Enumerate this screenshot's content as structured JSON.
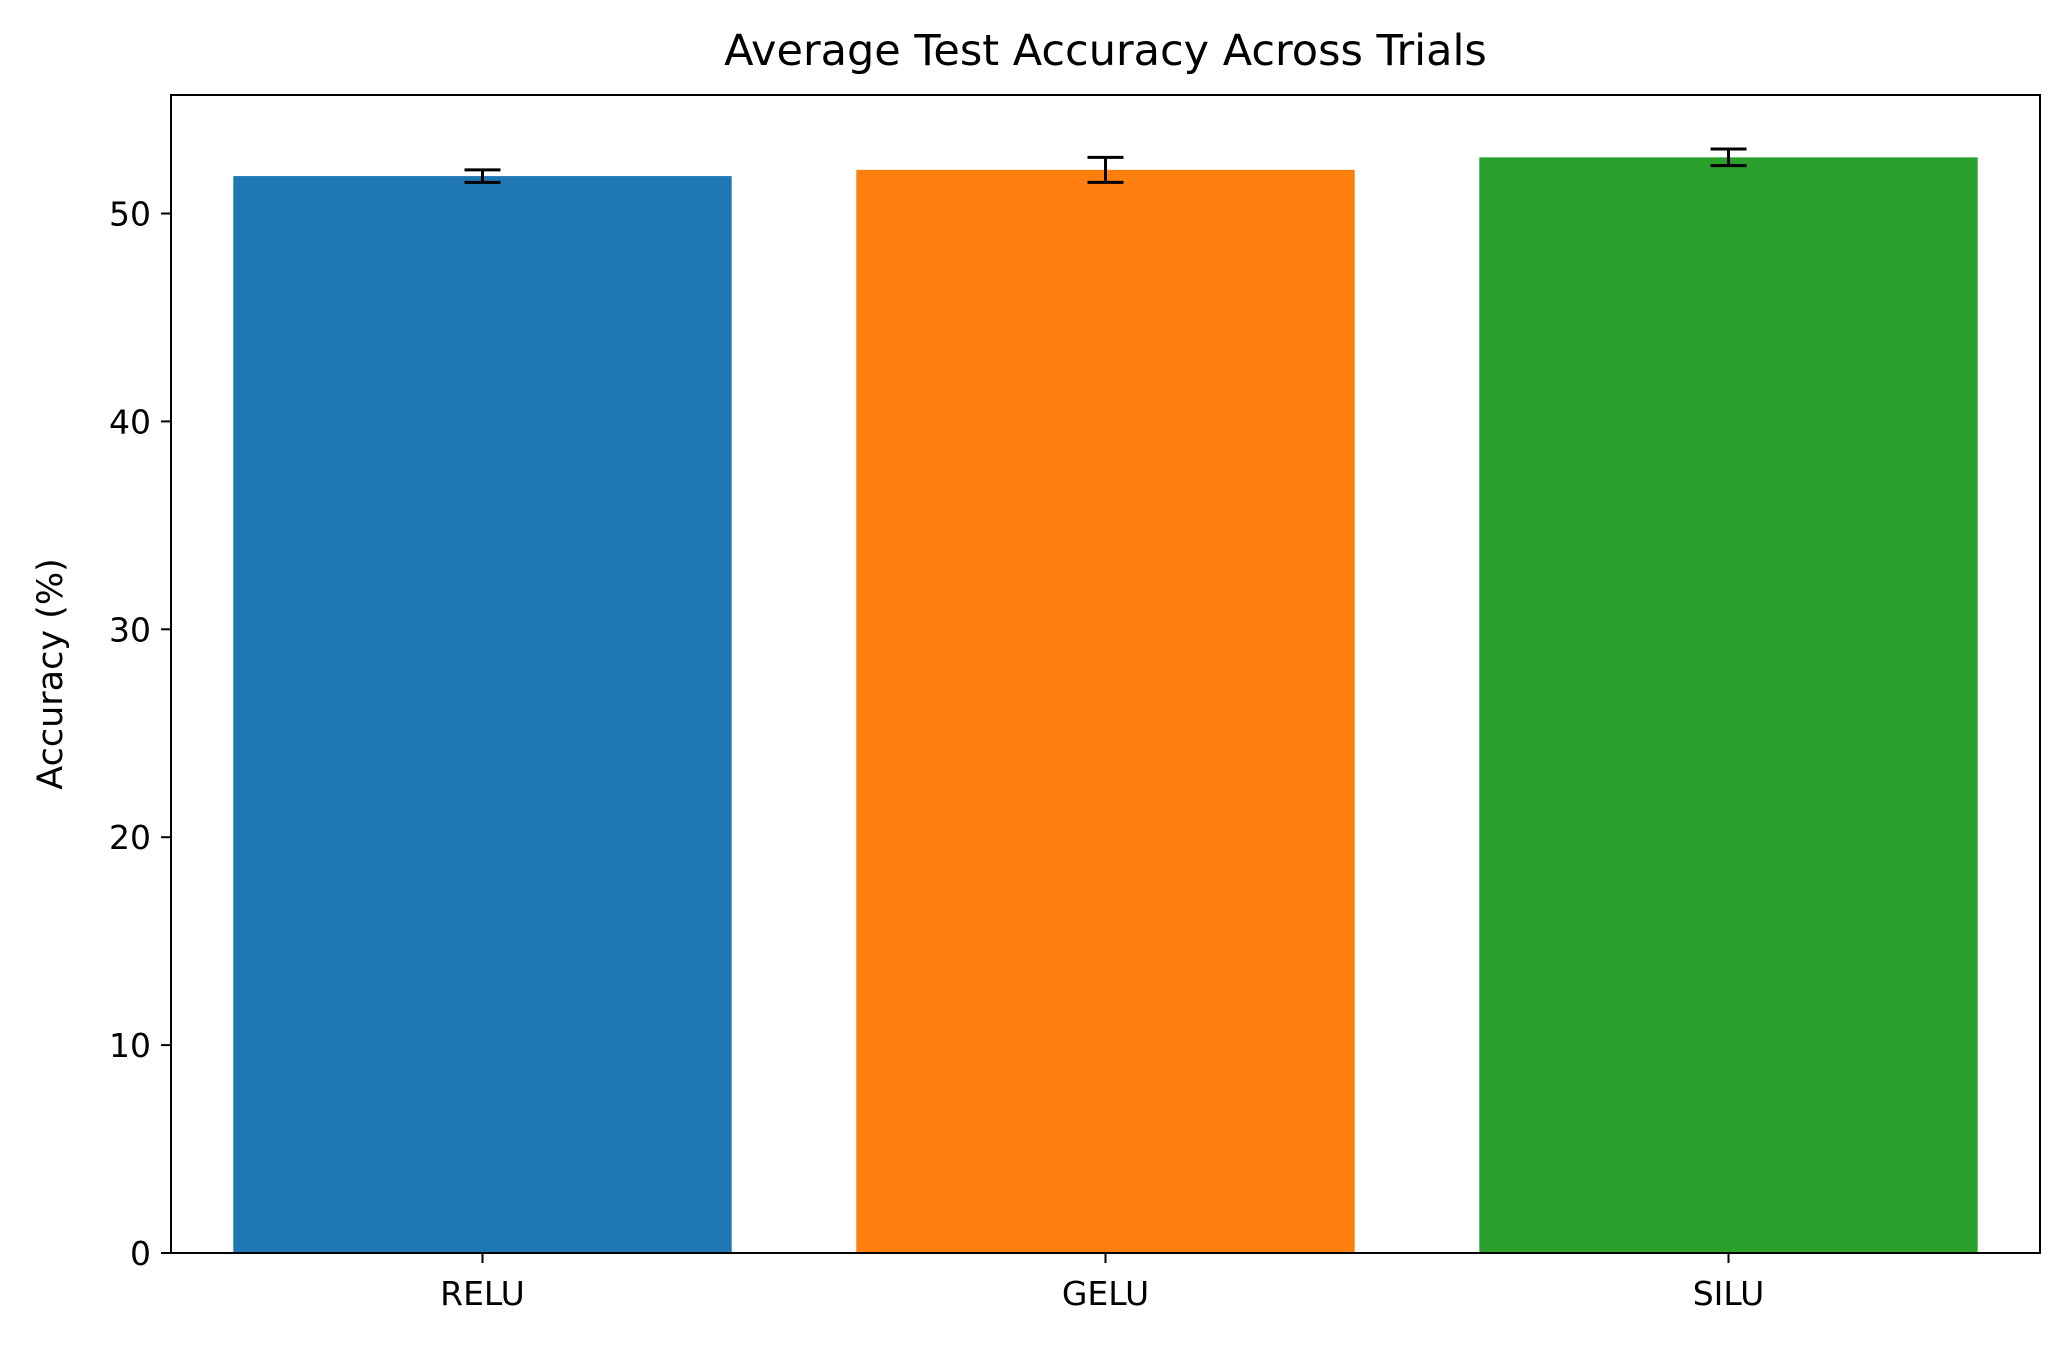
{
  "chart_data": {
    "type": "bar",
    "title": "Average Test Accuracy Across Trials",
    "xlabel": "",
    "ylabel": "Accuracy (%)",
    "categories": [
      "RELU",
      "GELU",
      "SILU"
    ],
    "values": [
      51.8,
      52.1,
      52.7
    ],
    "errors": [
      0.3,
      0.6,
      0.4
    ],
    "colors": [
      "#1f77b4",
      "#ff7f0e",
      "#2ca02c"
    ],
    "ylim": [
      0,
      55.7
    ],
    "yticks": [
      0,
      10,
      20,
      30,
      40,
      50
    ],
    "grid": false,
    "legend": "none"
  }
}
